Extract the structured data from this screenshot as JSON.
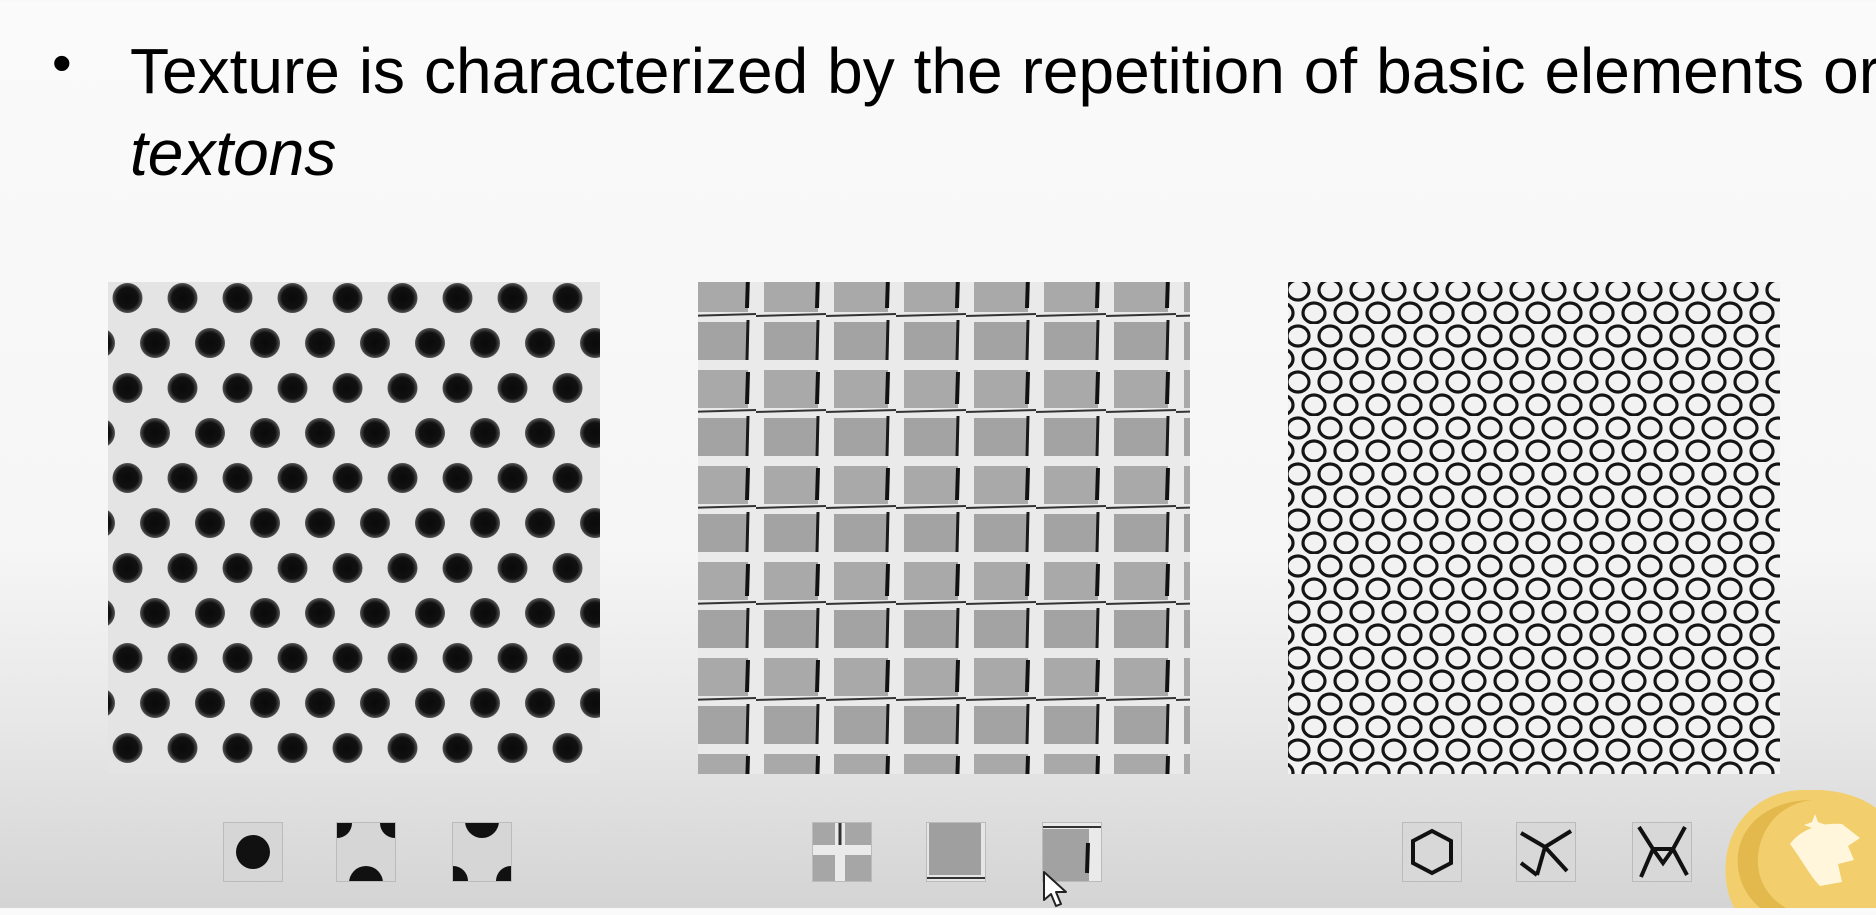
{
  "slide": {
    "bullet": {
      "symbol": "•",
      "text_plain": "Texture is characterized by the repetition of basic elements or",
      "text_emphasis": "textons"
    }
  },
  "panels": [
    {
      "name": "dots-texture",
      "textons": [
        "dot-texton",
        "dots-corner-texton",
        "dots-edge-texton"
      ]
    },
    {
      "name": "tiles-texture",
      "textons": [
        "tile-cross-texton",
        "tile-block-texton",
        "tile-slit-texton"
      ]
    },
    {
      "name": "net-texture",
      "textons": [
        "net-cell-texton",
        "net-knot-texton",
        "net-junction-texton"
      ]
    }
  ],
  "colors": {
    "accent_gold": "#f2cf6c",
    "text": "#000000"
  }
}
